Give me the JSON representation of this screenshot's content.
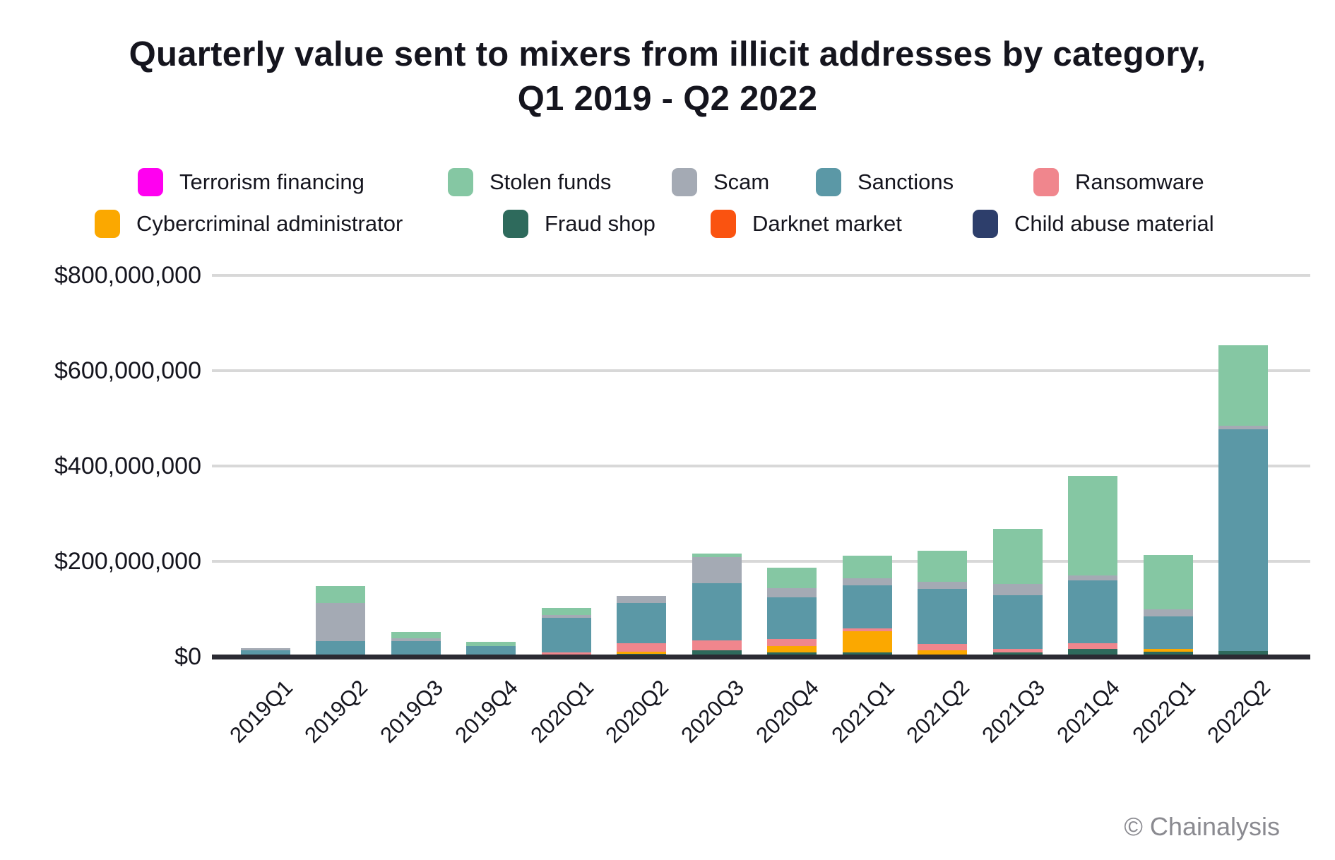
{
  "title": {
    "line1": "Quarterly value sent to mixers from illicit addresses by category,",
    "line2": "Q1 2019 - Q2 2022"
  },
  "footer": {
    "copyright": "© Chainalysis"
  },
  "chart_data": {
    "type": "bar",
    "stacked": true,
    "title": "Quarterly value sent to mixers from illicit addresses by category, Q1 2019 - Q2 2022",
    "xlabel": "",
    "ylabel": "",
    "ylim": [
      0,
      800000000
    ],
    "grid": "horizontal",
    "legend_position": "top",
    "categories": [
      "2019Q1",
      "2019Q2",
      "2019Q3",
      "2019Q4",
      "2020Q1",
      "2020Q2",
      "2020Q3",
      "2020Q4",
      "2021Q1",
      "2021Q2",
      "2021Q3",
      "2021Q4",
      "2022Q1",
      "2022Q2"
    ],
    "yticks": [
      {
        "value": 0,
        "label": "$0"
      },
      {
        "value": 200000000,
        "label": "$200,000,000"
      },
      {
        "value": 400000000,
        "label": "$400,000,000"
      },
      {
        "value": 600000000,
        "label": "$600,000,000"
      },
      {
        "value": 800000000,
        "label": "$800,000,000"
      }
    ],
    "series": [
      {
        "name": "Terrorism financing",
        "color": "#ff00f0",
        "values": [
          0,
          0,
          0,
          0,
          0,
          0,
          0,
          0,
          0,
          0,
          0,
          0,
          0,
          0
        ]
      },
      {
        "name": "Stolen funds",
        "color": "#85c7a3",
        "values": [
          0,
          36000000,
          13000000,
          9000000,
          15000000,
          0,
          7000000,
          43000000,
          47000000,
          65000000,
          115000000,
          210000000,
          115000000,
          170000000
        ]
      },
      {
        "name": "Scam",
        "color": "#a4aab4",
        "values": [
          4500000,
          80000000,
          6000000,
          0,
          5000000,
          15000000,
          55000000,
          19000000,
          16000000,
          15000000,
          24000000,
          10000000,
          15000000,
          7000000
        ]
      },
      {
        "name": "Sanctions",
        "color": "#5b98a6",
        "values": [
          13500000,
          30000000,
          28000000,
          18000000,
          73000000,
          84000000,
          120000000,
          87000000,
          90000000,
          115000000,
          113000000,
          132000000,
          67000000,
          465000000
        ]
      },
      {
        "name": "Ransomware",
        "color": "#f0868d",
        "values": [
          0,
          0,
          0,
          0,
          6000000,
          18000000,
          21000000,
          15000000,
          6000000,
          13000000,
          7000000,
          12000000,
          0,
          0
        ]
      },
      {
        "name": "Cybercriminal administrator",
        "color": "#fba800",
        "values": [
          0,
          0,
          5000000,
          4500000,
          0,
          4000000,
          0,
          13000000,
          44000000,
          9000000,
          0,
          0,
          7000000,
          0
        ]
      },
      {
        "name": "Fraud shop",
        "color": "#2e6a5c",
        "values": [
          0,
          2000000,
          0,
          0,
          3000000,
          6000000,
          9000000,
          6000000,
          9000000,
          5000000,
          9000000,
          16000000,
          10000000,
          12000000
        ]
      },
      {
        "name": "Darknet market",
        "color": "#fa5310",
        "values": [
          0,
          0,
          0,
          0,
          0,
          0,
          4000000,
          3000000,
          0,
          0,
          0,
          0,
          0,
          0
        ]
      },
      {
        "name": "Child abuse material",
        "color": "#2d3e6b",
        "values": [
          0,
          0,
          0,
          0,
          0,
          0,
          0,
          0,
          0,
          0,
          0,
          0,
          0,
          0
        ]
      }
    ],
    "stack_order": [
      "Child abuse material",
      "Darknet market",
      "Fraud shop",
      "Cybercriminal administrator",
      "Ransomware",
      "Sanctions",
      "Scam",
      "Stolen funds",
      "Terrorism financing"
    ],
    "legend_rows": [
      [
        "Terrorism financing",
        "Stolen funds",
        "Scam",
        "Sanctions",
        "Ransomware"
      ],
      [
        "Cybercriminal administrator",
        "Fraud shop",
        "Darknet market",
        "Child abuse material"
      ]
    ]
  }
}
